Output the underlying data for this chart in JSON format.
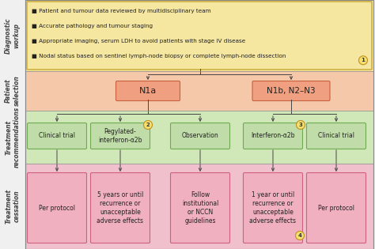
{
  "bg_color": "#f0f0f0",
  "section_colors": {
    "diagnostic": "#f5e6a0",
    "patient": "#f5c8aa",
    "treatment_rec": "#d0e8b8",
    "treatment_ces": "#f0c0cc"
  },
  "section_label_color": "#444444",
  "section_labels": {
    "diagnostic": "Diagnostic\nworkup",
    "patient": "Patient\nselection",
    "treatment_rec": "Treatment\nrecommendations",
    "treatment_ces": "Treatment\ncessation"
  },
  "diagnostic_text": [
    "■ Patient and tumour data reviewed by multidisciplinary team",
    "■ Accurate pathology and tumour staging",
    "■ Appropriate imaging, serum LDH to avoid patients with stage IV disease",
    "■ Nodal status based on sentinel lymph-node biopsy or complete lymph-node dissection"
  ],
  "node_n1a": "N1a",
  "node_n1b": "N1b, N2–N3",
  "treatment_boxes": [
    "Clinical trial",
    "Pegylated-\ninterferon-α2b",
    "Observation",
    "Interferon-α2b",
    "Clinical trial"
  ],
  "cessation_boxes": [
    "Per protocol",
    "5 years or until\nrecurrence or\nunacceptable\nadverse effects",
    "Follow\ninstitutional\nor NCCN\nguidelines",
    "1 year or until\nrecurrence or\nunacceptable\nadverse effects",
    "Per protocol"
  ],
  "node_fill": "#f0a080",
  "node_border": "#c86040",
  "treat_fill": "#c0dca8",
  "treat_border": "#70aa50",
  "cess_fill": "#f0b0c0",
  "cess_border": "#d06080",
  "circle_fill": "#f5e070",
  "circle_border": "#c09020",
  "arrow_color": "#444444",
  "diag_border": "#c8a830",
  "outer_border": "#888888"
}
